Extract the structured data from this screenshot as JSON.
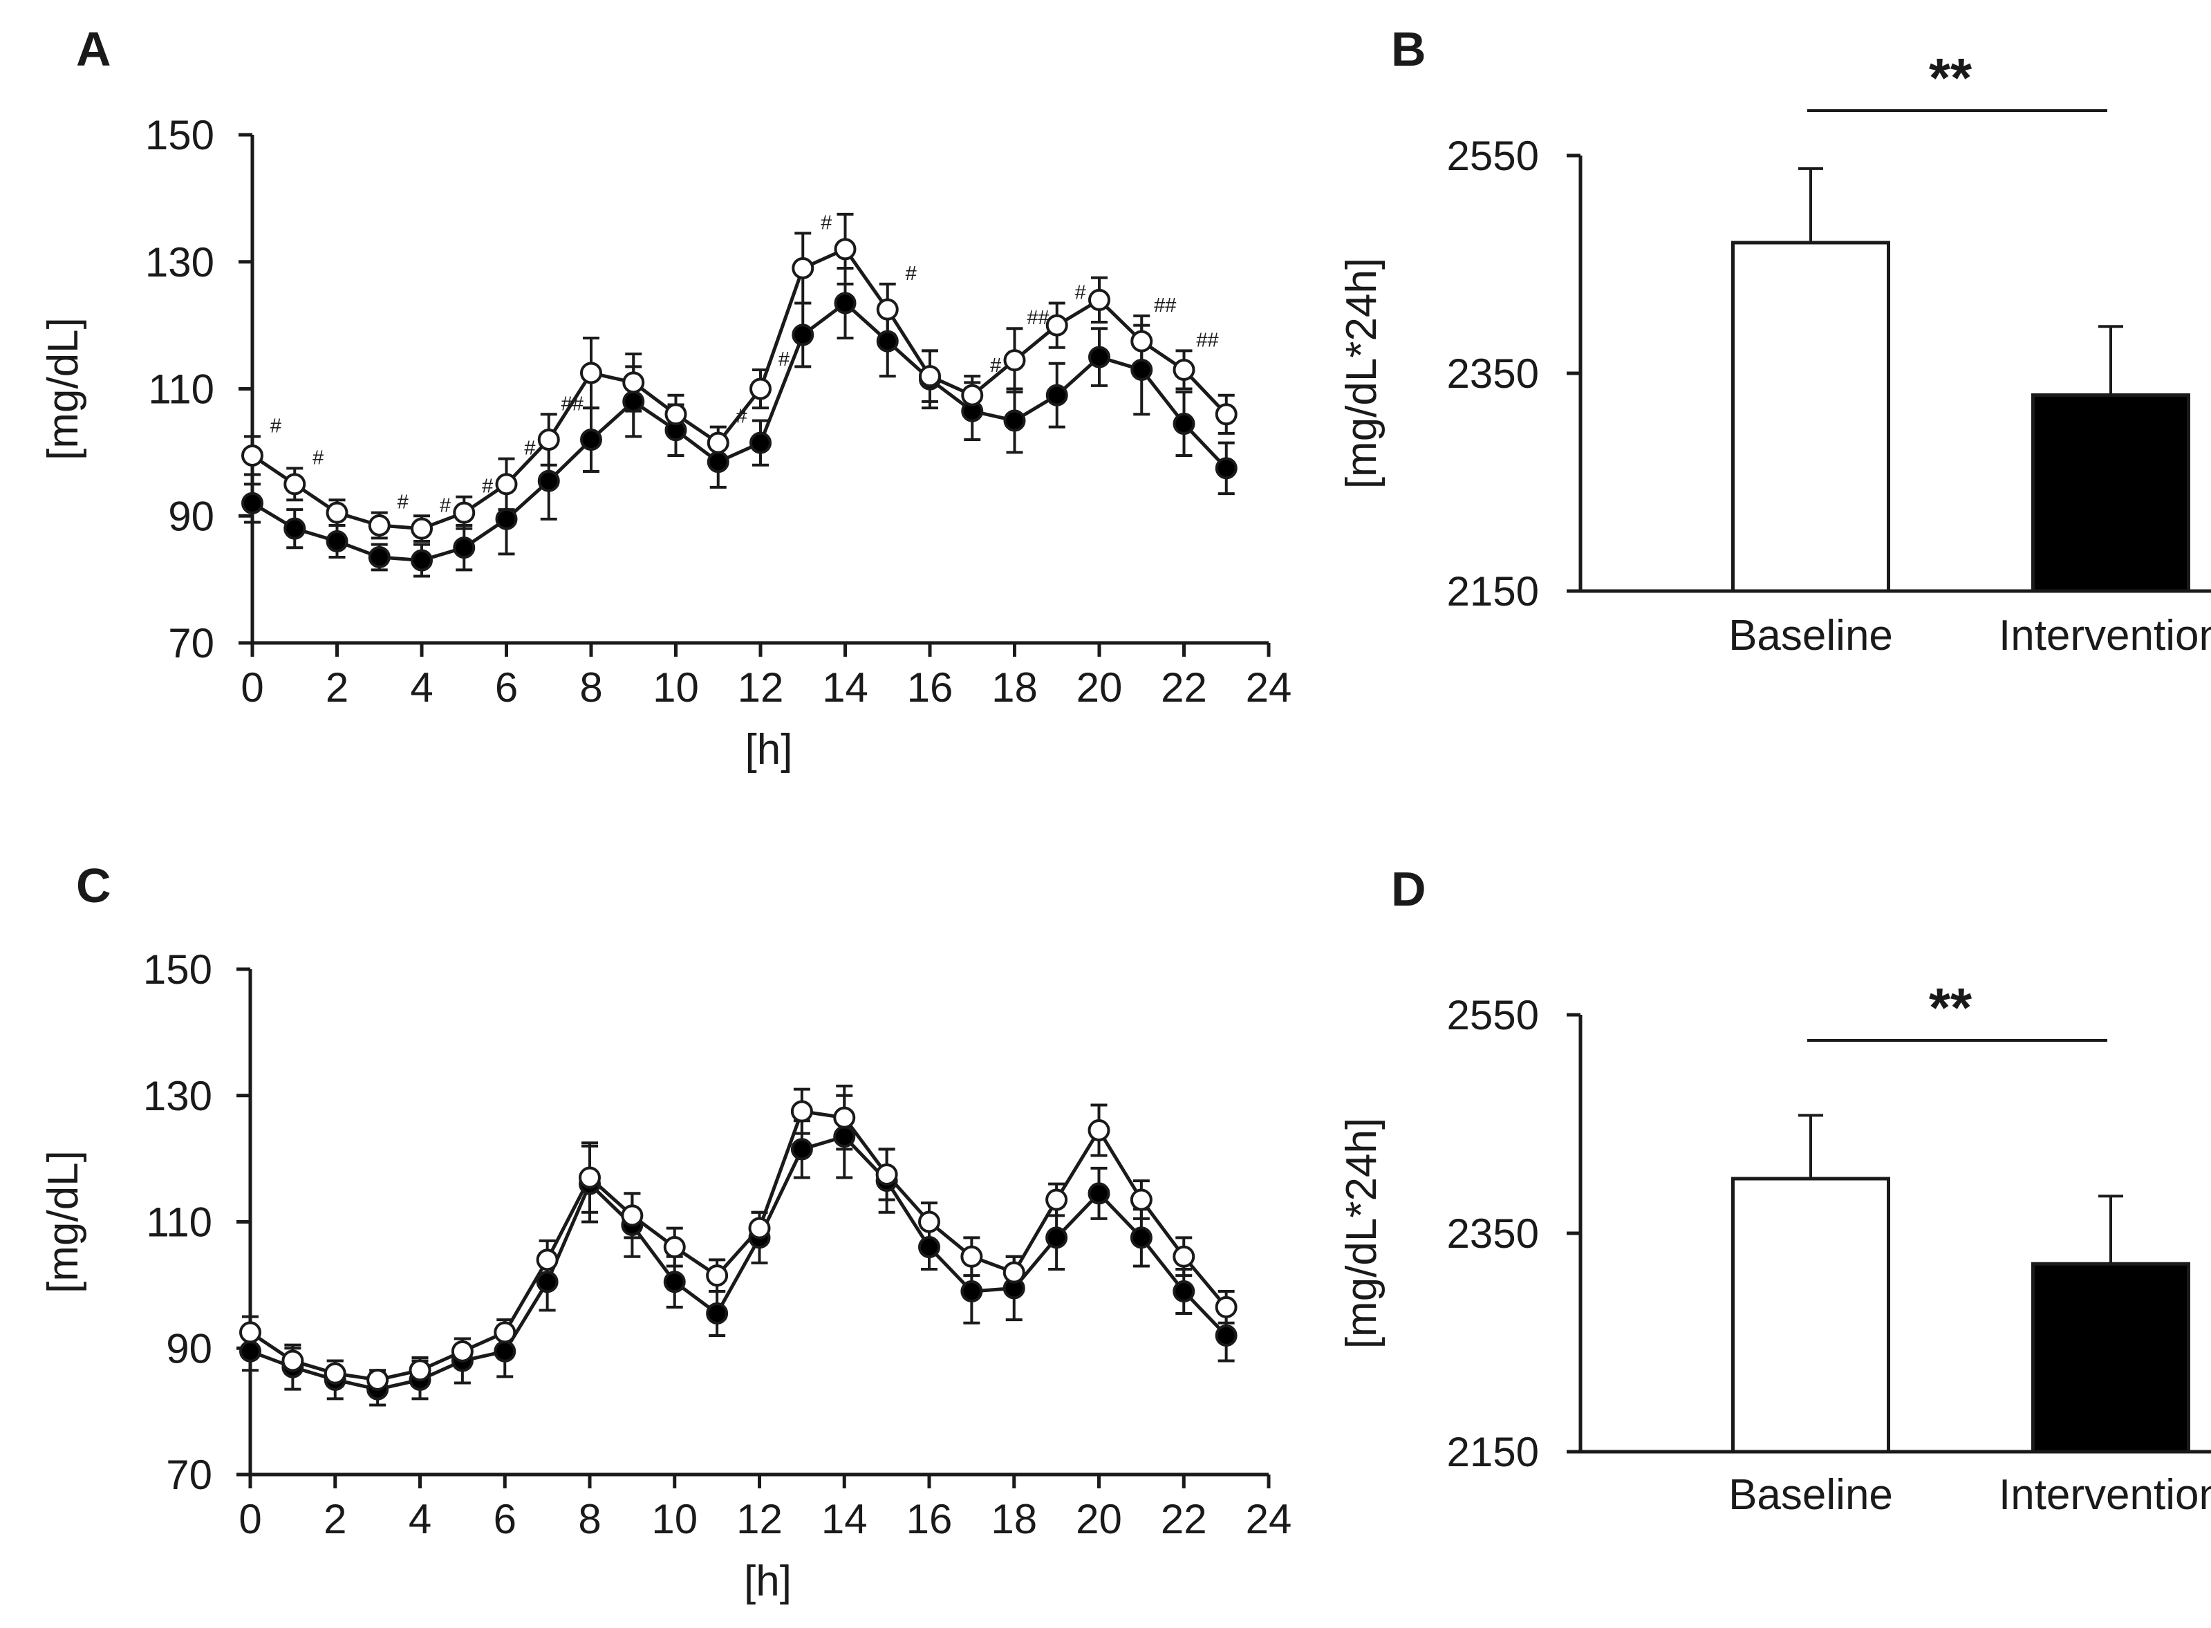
{
  "chart_data": [
    {
      "panel": "A",
      "type": "line",
      "xlabel": "[h]",
      "ylabel": "[mg/dL]",
      "xlim": [
        0,
        24
      ],
      "ylim": [
        70,
        150
      ],
      "xticks": [
        0,
        2,
        4,
        6,
        8,
        10,
        12,
        14,
        16,
        18,
        20,
        22,
        24
      ],
      "yticks": [
        70,
        90,
        110,
        130,
        150
      ],
      "x": [
        0,
        1,
        2,
        3,
        4,
        5,
        6,
        7,
        8,
        9,
        10,
        11,
        12,
        13,
        14,
        15,
        16,
        17,
        18,
        19,
        20,
        21,
        22,
        23
      ],
      "series": [
        {
          "marker": "open-circle",
          "values": [
            99.5,
            95,
            90.5,
            88.5,
            88,
            90.5,
            95,
            102,
            112.5,
            111,
            106,
            101.5,
            110,
            129,
            132,
            122.5,
            112,
            109,
            114.5,
            120,
            124,
            117.5,
            113,
            106
          ],
          "errors": [
            3,
            2.5,
            2,
            2,
            2,
            2.5,
            4,
            4,
            5.5,
            4.5,
            3,
            2.5,
            3,
            5.5,
            5.5,
            4,
            4,
            3,
            5,
            3.5,
            3.5,
            4,
            3,
            3
          ]
        },
        {
          "marker": "filled-circle",
          "values": [
            92,
            88,
            86,
            83.5,
            83,
            85,
            89.5,
            95.5,
            102,
            108,
            103.5,
            98.5,
            101.5,
            118.5,
            123.5,
            117.5,
            111.5,
            106.5,
            105,
            109,
            115,
            113,
            104.5,
            97.5
          ],
          "errors": [
            3,
            3,
            2.5,
            2,
            2.5,
            3.5,
            5.5,
            6,
            5,
            5.5,
            4,
            4,
            3.5,
            5,
            5.5,
            5.5,
            4.5,
            4.5,
            5,
            5,
            4.5,
            7,
            5,
            4
          ]
        }
      ],
      "annotations": [
        {
          "x": 0,
          "text": "#"
        },
        {
          "x": 1,
          "text": "#"
        },
        {
          "x": 3,
          "text": "#"
        },
        {
          "x": 4,
          "text": "#"
        },
        {
          "x": 5,
          "text": "#"
        },
        {
          "x": 6,
          "text": "#"
        },
        {
          "x": 7,
          "text": "##"
        },
        {
          "x": 11,
          "text": "#"
        },
        {
          "x": 12,
          "text": "#"
        },
        {
          "x": 13,
          "text": "#"
        },
        {
          "x": 15,
          "text": "#"
        },
        {
          "x": 17,
          "text": "#"
        },
        {
          "x": 18,
          "text": "##"
        },
        {
          "x": 19,
          "text": "#"
        },
        {
          "x": 21,
          "text": "##"
        },
        {
          "x": 22,
          "text": "##"
        }
      ]
    },
    {
      "panel": "B",
      "type": "bar",
      "ylabel": "[mg/dL*24h]",
      "ylim": [
        2150,
        2550
      ],
      "yticks": [
        2150,
        2350,
        2550
      ],
      "categories": [
        "Baseline",
        "Intervention"
      ],
      "values": [
        2470,
        2330
      ],
      "errors": [
        68,
        63
      ],
      "fill": [
        "#ffffff",
        "#000000"
      ],
      "significance": "**"
    },
    {
      "panel": "C",
      "type": "line",
      "xlabel": "[h]",
      "ylabel": "[mg/dL]",
      "xlim": [
        0,
        24
      ],
      "ylim": [
        70,
        150
      ],
      "xticks": [
        0,
        2,
        4,
        6,
        8,
        10,
        12,
        14,
        16,
        18,
        20,
        22,
        24
      ],
      "yticks": [
        70,
        90,
        110,
        130,
        150
      ],
      "x": [
        0,
        1,
        2,
        3,
        4,
        5,
        6,
        7,
        8,
        9,
        10,
        11,
        12,
        13,
        14,
        15,
        16,
        17,
        18,
        19,
        20,
        21,
        22,
        23
      ],
      "series": [
        {
          "marker": "open-circle",
          "values": [
            92.5,
            88,
            86,
            85,
            86.5,
            89.5,
            92.5,
            104,
            117,
            111,
            106,
            101.5,
            109,
            127.5,
            126.5,
            117.5,
            110,
            104.5,
            102,
            113.5,
            124.5,
            113.5,
            104.5,
            96.5
          ],
          "errors": [
            2.5,
            2,
            2,
            1.5,
            2,
            2,
            2,
            3,
            5.5,
            3.5,
            3,
            2.5,
            2.5,
            3.5,
            5,
            4,
            3,
            3,
            2.5,
            2.5,
            4,
            3,
            3,
            2.5
          ]
        },
        {
          "marker": "filled-circle",
          "values": [
            89.5,
            87,
            85,
            83.5,
            85,
            88,
            89.5,
            100.5,
            116,
            109.5,
            100.5,
            95.5,
            107.5,
            121.5,
            123.5,
            116.5,
            106,
            99,
            99.5,
            107.5,
            114.5,
            107.5,
            99,
            92
          ],
          "errors": [
            3,
            3.5,
            3,
            2.5,
            3,
            3.5,
            4,
            4.5,
            6,
            5,
            4,
            3.5,
            4,
            4.5,
            6.5,
            5,
            3.5,
            5,
            5,
            5,
            4,
            4.5,
            3.5,
            4
          ]
        }
      ]
    },
    {
      "panel": "D",
      "type": "bar",
      "ylabel": "[mg/dL*24h]",
      "ylim": [
        2150,
        2550
      ],
      "yticks": [
        2150,
        2350,
        2550
      ],
      "categories": [
        "Baseline",
        "Intervention"
      ],
      "values": [
        2400,
        2322
      ],
      "errors": [
        58,
        62
      ],
      "fill": [
        "#ffffff",
        "#000000"
      ],
      "significance": "**"
    }
  ]
}
